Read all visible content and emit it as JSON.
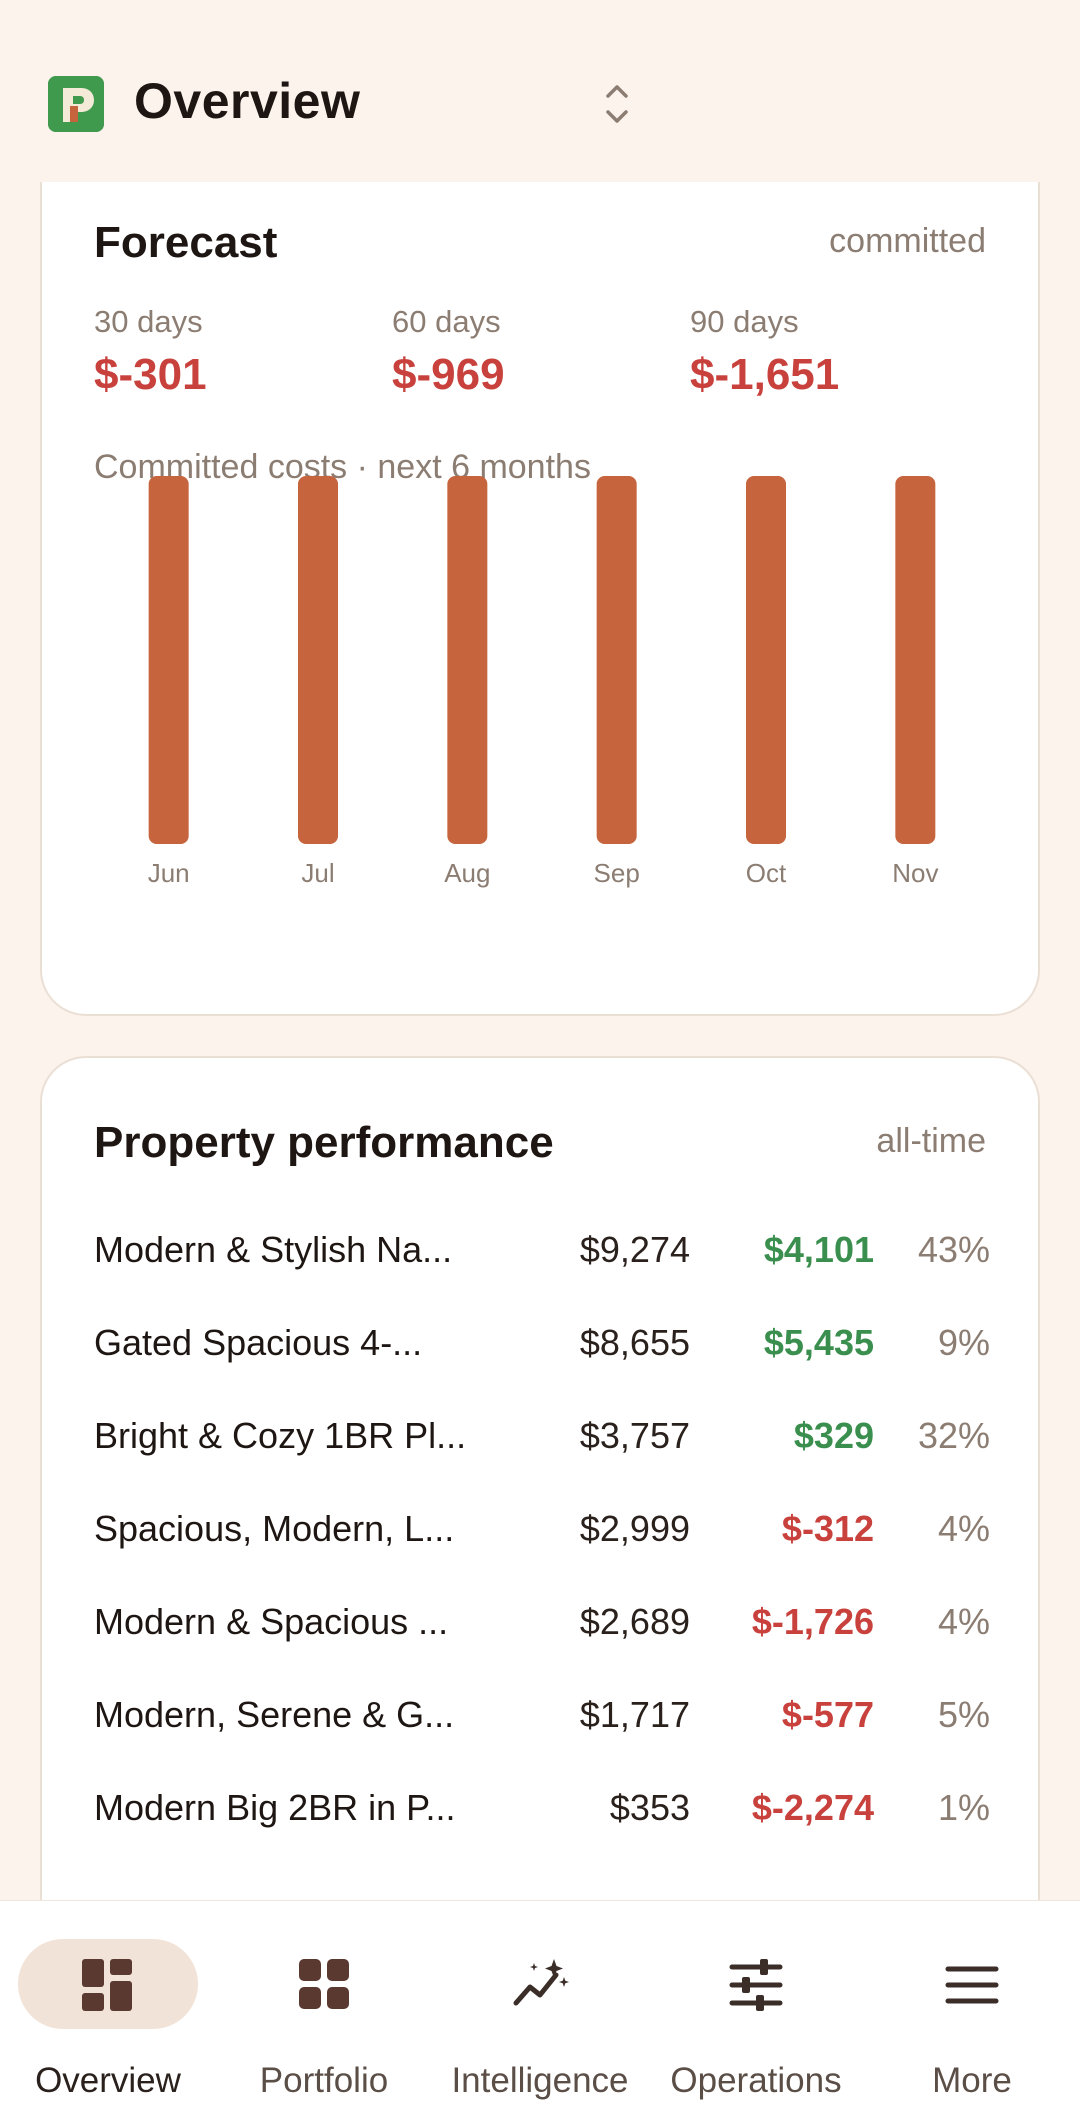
{
  "header": {
    "title": "Overview",
    "logo_icon": "app-logo-icon",
    "switch_icon": "chevron-up-down-icon"
  },
  "forecast": {
    "title": "Forecast",
    "tag": "committed",
    "periods": [
      {
        "label": "30 days",
        "value": "$-301"
      },
      {
        "label": "60 days",
        "value": "$-969"
      },
      {
        "label": "90 days",
        "value": "$-1,651"
      }
    ],
    "chart_caption": "Committed costs · next 6 months"
  },
  "chart_data": {
    "type": "bar",
    "title": "Committed costs · next 6 months",
    "categories": [
      "Jun",
      "Jul",
      "Aug",
      "Sep",
      "Oct",
      "Nov"
    ],
    "values": [
      1,
      1,
      1,
      1,
      1,
      1
    ],
    "ylim": [
      0,
      1
    ],
    "bar_color": "#c6643d",
    "grid": false
  },
  "performance": {
    "title": "Property performance",
    "tag": "all-time",
    "rows": [
      {
        "name": "Modern & Stylish Na...",
        "revenue": "$9,274",
        "profit": "$4,101",
        "sign": "pos",
        "occupancy": "43%"
      },
      {
        "name": "Gated Spacious 4-...",
        "revenue": "$8,655",
        "profit": "$5,435",
        "sign": "pos",
        "occupancy": "9%"
      },
      {
        "name": "Bright & Cozy 1BR Pl...",
        "revenue": "$3,757",
        "profit": "$329",
        "sign": "pos",
        "occupancy": "32%"
      },
      {
        "name": "Spacious, Modern, L...",
        "revenue": "$2,999",
        "profit": "$-312",
        "sign": "neg",
        "occupancy": "4%"
      },
      {
        "name": "Modern & Spacious ...",
        "revenue": "$2,689",
        "profit": "$-1,726",
        "sign": "neg",
        "occupancy": "4%"
      },
      {
        "name": "Modern, Serene & G...",
        "revenue": "$1,717",
        "profit": "$-577",
        "sign": "neg",
        "occupancy": "5%"
      },
      {
        "name": "Modern Big 2BR in P...",
        "revenue": "$353",
        "profit": "$-2,274",
        "sign": "neg",
        "occupancy": "1%"
      }
    ]
  },
  "nav": {
    "items": [
      {
        "label": "Overview",
        "icon": "dashboard-icon",
        "active": true
      },
      {
        "label": "Portfolio",
        "icon": "grid-icon",
        "active": false
      },
      {
        "label": "Intelligence",
        "icon": "sparkle-trend-icon",
        "active": false
      },
      {
        "label": "Operations",
        "icon": "sliders-icon",
        "active": false
      },
      {
        "label": "More",
        "icon": "menu-icon",
        "active": false
      }
    ]
  },
  "colors": {
    "background": "#fcf3ec",
    "accent_bar": "#c6643d",
    "positive": "#3a8f4e",
    "negative": "#c8413c",
    "logo_green": "#3f9a4d"
  }
}
